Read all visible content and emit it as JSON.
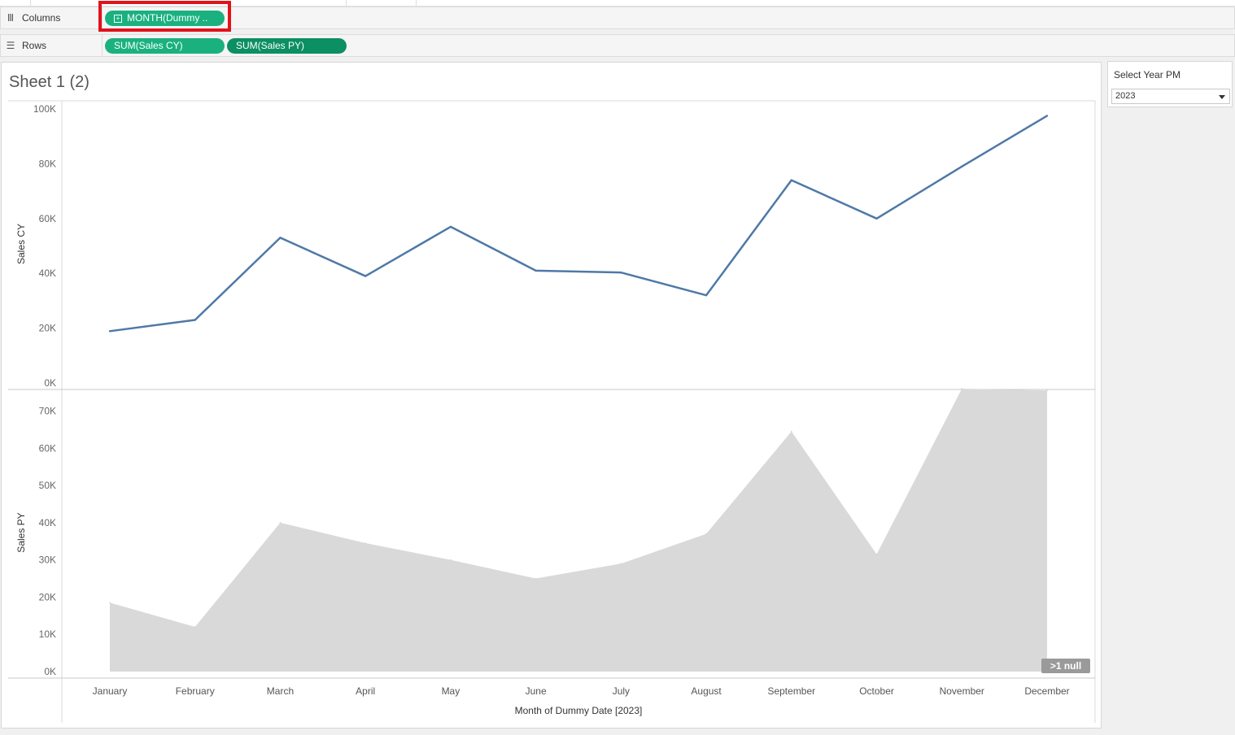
{
  "shelves": {
    "columns": {
      "label": "Columns",
      "icon": "columns-icon",
      "pill": "MONTH(Dummy .."
    },
    "rows": {
      "label": "Rows",
      "icon": "rows-icon",
      "pills": [
        "SUM(Sales CY)",
        "SUM(Sales PY)"
      ]
    }
  },
  "sheet": {
    "title": "Sheet 1 (2)"
  },
  "filter": {
    "title": "Select Year PM",
    "value": "2023"
  },
  "colors": {
    "line": "#4e79a7",
    "area": "#d9d9d9",
    "pill_light": "#1ab17f",
    "pill_dark": "#0b8f63",
    "highlight": "#e0131b"
  },
  "null_badge": ">1 null",
  "chart_data": [
    {
      "type": "line",
      "categories": [
        "January",
        "February",
        "March",
        "April",
        "May",
        "June",
        "July",
        "August",
        "September",
        "October",
        "November",
        "December"
      ],
      "series": [
        {
          "values": [
            18900,
            23000,
            53000,
            39000,
            57000,
            41000,
            40300,
            32000,
            74000,
            60000,
            79000,
            97500
          ]
        }
      ],
      "ylabel": "Sales CY",
      "ylim": [
        0,
        100000
      ],
      "yticks": [
        "100K",
        "80K",
        "60K",
        "40K",
        "20K",
        "0K"
      ],
      "grid": false
    },
    {
      "type": "area",
      "categories": [
        "January",
        "February",
        "March",
        "April",
        "May",
        "June",
        "July",
        "August",
        "September",
        "October",
        "November",
        "December"
      ],
      "series": [
        {
          "values": [
            18500,
            12000,
            40000,
            34500,
            30000,
            25000,
            29000,
            37000,
            64500,
            31500,
            76000,
            75500
          ]
        }
      ],
      "ylabel": "Sales PY",
      "ylim": [
        0,
        76000
      ],
      "yticks": [
        "70K",
        "60K",
        "50K",
        "40K",
        "30K",
        "20K",
        "10K",
        "0K"
      ],
      "xlabel": "Month of Dummy Date [2023]",
      "grid": false
    }
  ]
}
